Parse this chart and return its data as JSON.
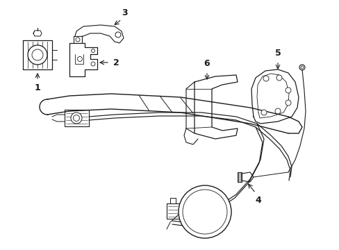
{
  "bg_color": "#ffffff",
  "line_color": "#1a1a1a",
  "lw": 0.9,
  "figsize": [
    4.89,
    3.6
  ],
  "dpi": 100
}
